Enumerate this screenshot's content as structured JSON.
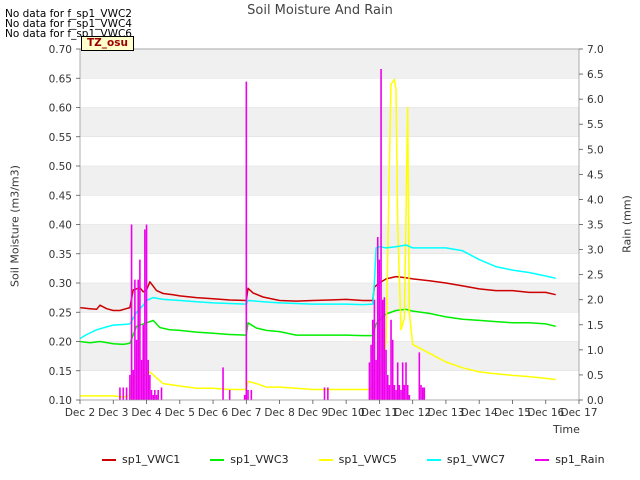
{
  "header": {
    "title": "Soil Moisture And Rain",
    "no_data": [
      "No data for f_sp1_VWC2",
      "No data for f_sp1_VWC4",
      "No data for f_sp1_VWC6"
    ],
    "tz_label": "TZ_osu"
  },
  "chart_data": {
    "type": "line",
    "title": "Soil Moisture And Rain",
    "xlabel": "Time",
    "ylabel": "Soil Moisture (m3/m3)",
    "y2label": "Rain (mm)",
    "x_ticks": [
      "Dec 2",
      "Dec 3",
      "Dec 4",
      "Dec 5",
      "Dec 6",
      "Dec 7",
      "Dec 8",
      "Dec 9",
      "Dec 10",
      "Dec 11",
      "Dec 12",
      "Dec 13",
      "Dec 14",
      "Dec 15",
      "Dec 16",
      "Dec 17"
    ],
    "xlim": [
      2,
      17
    ],
    "ylim": [
      0.1,
      0.7
    ],
    "y2lim": [
      0.0,
      7.0
    ],
    "y_ticks": [
      "0.10",
      "0.15",
      "0.20",
      "0.25",
      "0.30",
      "0.35",
      "0.40",
      "0.45",
      "0.50",
      "0.55",
      "0.60",
      "0.65",
      "0.70"
    ],
    "y2_ticks": [
      "0.0",
      "0.5",
      "1.0",
      "1.5",
      "2.0",
      "2.5",
      "3.0",
      "3.5",
      "4.0",
      "4.5",
      "5.0",
      "5.5",
      "6.0",
      "6.5",
      "7.0"
    ],
    "grid": "horizontal bands",
    "legend_position": "bottom",
    "series": [
      {
        "name": "sp1_VWC1",
        "color": "#cc0000",
        "axis": "left",
        "x": [
          2.0,
          2.3,
          2.5,
          2.6,
          2.8,
          3.0,
          3.2,
          3.5,
          3.6,
          3.8,
          3.9,
          4.0,
          4.1,
          4.3,
          4.5,
          4.8,
          5.0,
          5.5,
          6.0,
          6.5,
          7.0,
          7.05,
          7.2,
          7.5,
          8.0,
          8.5,
          9.0,
          9.5,
          10.0,
          10.5,
          10.8,
          10.85,
          11.0,
          11.2,
          11.5,
          11.8,
          12.0,
          12.5,
          13.0,
          13.5,
          14.0,
          14.5,
          15.0,
          15.5,
          16.0,
          16.3
        ],
        "values": [
          0.258,
          0.256,
          0.255,
          0.262,
          0.256,
          0.253,
          0.253,
          0.258,
          0.288,
          0.292,
          0.285,
          0.288,
          0.302,
          0.287,
          0.282,
          0.28,
          0.278,
          0.275,
          0.273,
          0.271,
          0.27,
          0.291,
          0.283,
          0.276,
          0.27,
          0.269,
          0.27,
          0.271,
          0.272,
          0.27,
          0.27,
          0.293,
          0.3,
          0.307,
          0.311,
          0.309,
          0.307,
          0.304,
          0.3,
          0.295,
          0.29,
          0.287,
          0.287,
          0.284,
          0.284,
          0.28
        ]
      },
      {
        "name": "sp1_VWC3",
        "color": "#00ee00",
        "axis": "left",
        "x": [
          2.0,
          2.3,
          2.6,
          3.0,
          3.3,
          3.5,
          3.7,
          3.9,
          4.0,
          4.2,
          4.4,
          4.7,
          5.0,
          5.5,
          6.0,
          6.5,
          7.0,
          7.05,
          7.3,
          7.6,
          8.0,
          8.5,
          9.0,
          9.5,
          10.0,
          10.5,
          10.8,
          10.9,
          11.0,
          11.2,
          11.5,
          11.8,
          12.0,
          12.5,
          13.0,
          13.5,
          14.0,
          14.5,
          15.0,
          15.5,
          16.0,
          16.3
        ],
        "values": [
          0.2,
          0.198,
          0.2,
          0.196,
          0.195,
          0.197,
          0.226,
          0.23,
          0.232,
          0.236,
          0.224,
          0.22,
          0.219,
          0.216,
          0.214,
          0.212,
          0.211,
          0.232,
          0.223,
          0.219,
          0.217,
          0.211,
          0.211,
          0.211,
          0.211,
          0.21,
          0.21,
          0.23,
          0.237,
          0.247,
          0.253,
          0.255,
          0.252,
          0.248,
          0.242,
          0.238,
          0.236,
          0.234,
          0.232,
          0.232,
          0.23,
          0.226
        ]
      },
      {
        "name": "sp1_VWC5",
        "color": "#ffff00",
        "axis": "left",
        "x": [
          2.0,
          2.5,
          3.0,
          3.3,
          3.5,
          3.6,
          3.8,
          4.0,
          4.1,
          4.3,
          4.5,
          5.0,
          5.5,
          6.0,
          6.5,
          7.0,
          7.05,
          7.3,
          7.6,
          8.0,
          8.5,
          9.0,
          9.5,
          10.0,
          10.5,
          10.7,
          10.9,
          11.0,
          11.1,
          11.2,
          11.3,
          11.35,
          11.45,
          11.5,
          11.55,
          11.65,
          11.75,
          11.85,
          11.9,
          12.0,
          12.5,
          13.0,
          13.5,
          14.0,
          14.5,
          15.0,
          15.5,
          16.0,
          16.3
        ],
        "values": [
          0.107,
          0.107,
          0.107,
          0.105,
          0.108,
          0.138,
          0.14,
          0.143,
          0.148,
          0.138,
          0.128,
          0.124,
          0.12,
          0.12,
          0.118,
          0.118,
          0.132,
          0.128,
          0.122,
          0.122,
          0.12,
          0.118,
          0.118,
          0.118,
          0.118,
          0.118,
          0.13,
          0.14,
          0.16,
          0.2,
          0.5,
          0.64,
          0.648,
          0.63,
          0.4,
          0.22,
          0.24,
          0.6,
          0.25,
          0.195,
          0.18,
          0.165,
          0.155,
          0.148,
          0.145,
          0.142,
          0.14,
          0.137,
          0.135
        ]
      },
      {
        "name": "sp1_VWC7",
        "color": "#00ffff",
        "axis": "left",
        "x": [
          2.0,
          2.2,
          2.5,
          2.8,
          3.0,
          3.3,
          3.5,
          3.7,
          3.9,
          4.0,
          4.2,
          4.5,
          5.0,
          5.5,
          6.0,
          6.5,
          7.0,
          7.05,
          7.5,
          8.0,
          8.5,
          9.0,
          9.5,
          10.0,
          10.5,
          10.8,
          10.85,
          10.9,
          11.0,
          11.2,
          11.5,
          11.8,
          12.0,
          12.5,
          13.0,
          13.5,
          14.0,
          14.5,
          15.0,
          15.5,
          16.0,
          16.3
        ],
        "values": [
          0.205,
          0.212,
          0.22,
          0.225,
          0.228,
          0.229,
          0.23,
          0.25,
          0.262,
          0.27,
          0.275,
          0.272,
          0.27,
          0.268,
          0.266,
          0.265,
          0.264,
          0.27,
          0.268,
          0.266,
          0.265,
          0.264,
          0.264,
          0.264,
          0.263,
          0.264,
          0.3,
          0.36,
          0.362,
          0.36,
          0.362,
          0.365,
          0.36,
          0.36,
          0.36,
          0.355,
          0.34,
          0.328,
          0.322,
          0.318,
          0.312,
          0.308
        ]
      },
      {
        "name": "sp1_Rain",
        "color": "#ee00ee",
        "axis": "right",
        "style": "spikes",
        "x": [
          3.2,
          3.3,
          3.4,
          3.5,
          3.55,
          3.6,
          3.65,
          3.7,
          3.75,
          3.8,
          3.85,
          3.9,
          3.95,
          4.0,
          4.05,
          4.1,
          4.15,
          4.2,
          4.25,
          4.3,
          4.35,
          4.45,
          6.3,
          6.5,
          6.95,
          7.0,
          7.05,
          7.15,
          9.35,
          9.45,
          10.7,
          10.75,
          10.8,
          10.85,
          10.9,
          10.95,
          11.0,
          11.05,
          11.1,
          11.15,
          11.2,
          11.25,
          11.3,
          11.35,
          11.4,
          11.45,
          11.5,
          11.55,
          11.6,
          11.65,
          11.7,
          11.75,
          11.8,
          11.85,
          11.9,
          12.2,
          12.25,
          12.3,
          12.35
        ],
        "values": [
          0.25,
          0.25,
          0.25,
          0.5,
          3.5,
          0.6,
          2.4,
          1.2,
          2.4,
          2.8,
          0.8,
          1.5,
          3.4,
          3.5,
          0.8,
          0.5,
          0.2,
          0.1,
          0.2,
          0.1,
          0.2,
          0.25,
          0.65,
          0.2,
          0.1,
          6.35,
          0.2,
          0.2,
          0.25,
          0.25,
          0.75,
          1.1,
          1.6,
          2.0,
          0.8,
          3.25,
          2.8,
          6.6,
          2.0,
          2.05,
          1.0,
          0.5,
          0.3,
          1.6,
          1.2,
          0.3,
          0.2,
          0.75,
          0.3,
          0.2,
          0.75,
          0.3,
          0.75,
          0.3,
          0.1,
          0.95,
          0.3,
          0.25,
          0.25
        ]
      }
    ]
  }
}
